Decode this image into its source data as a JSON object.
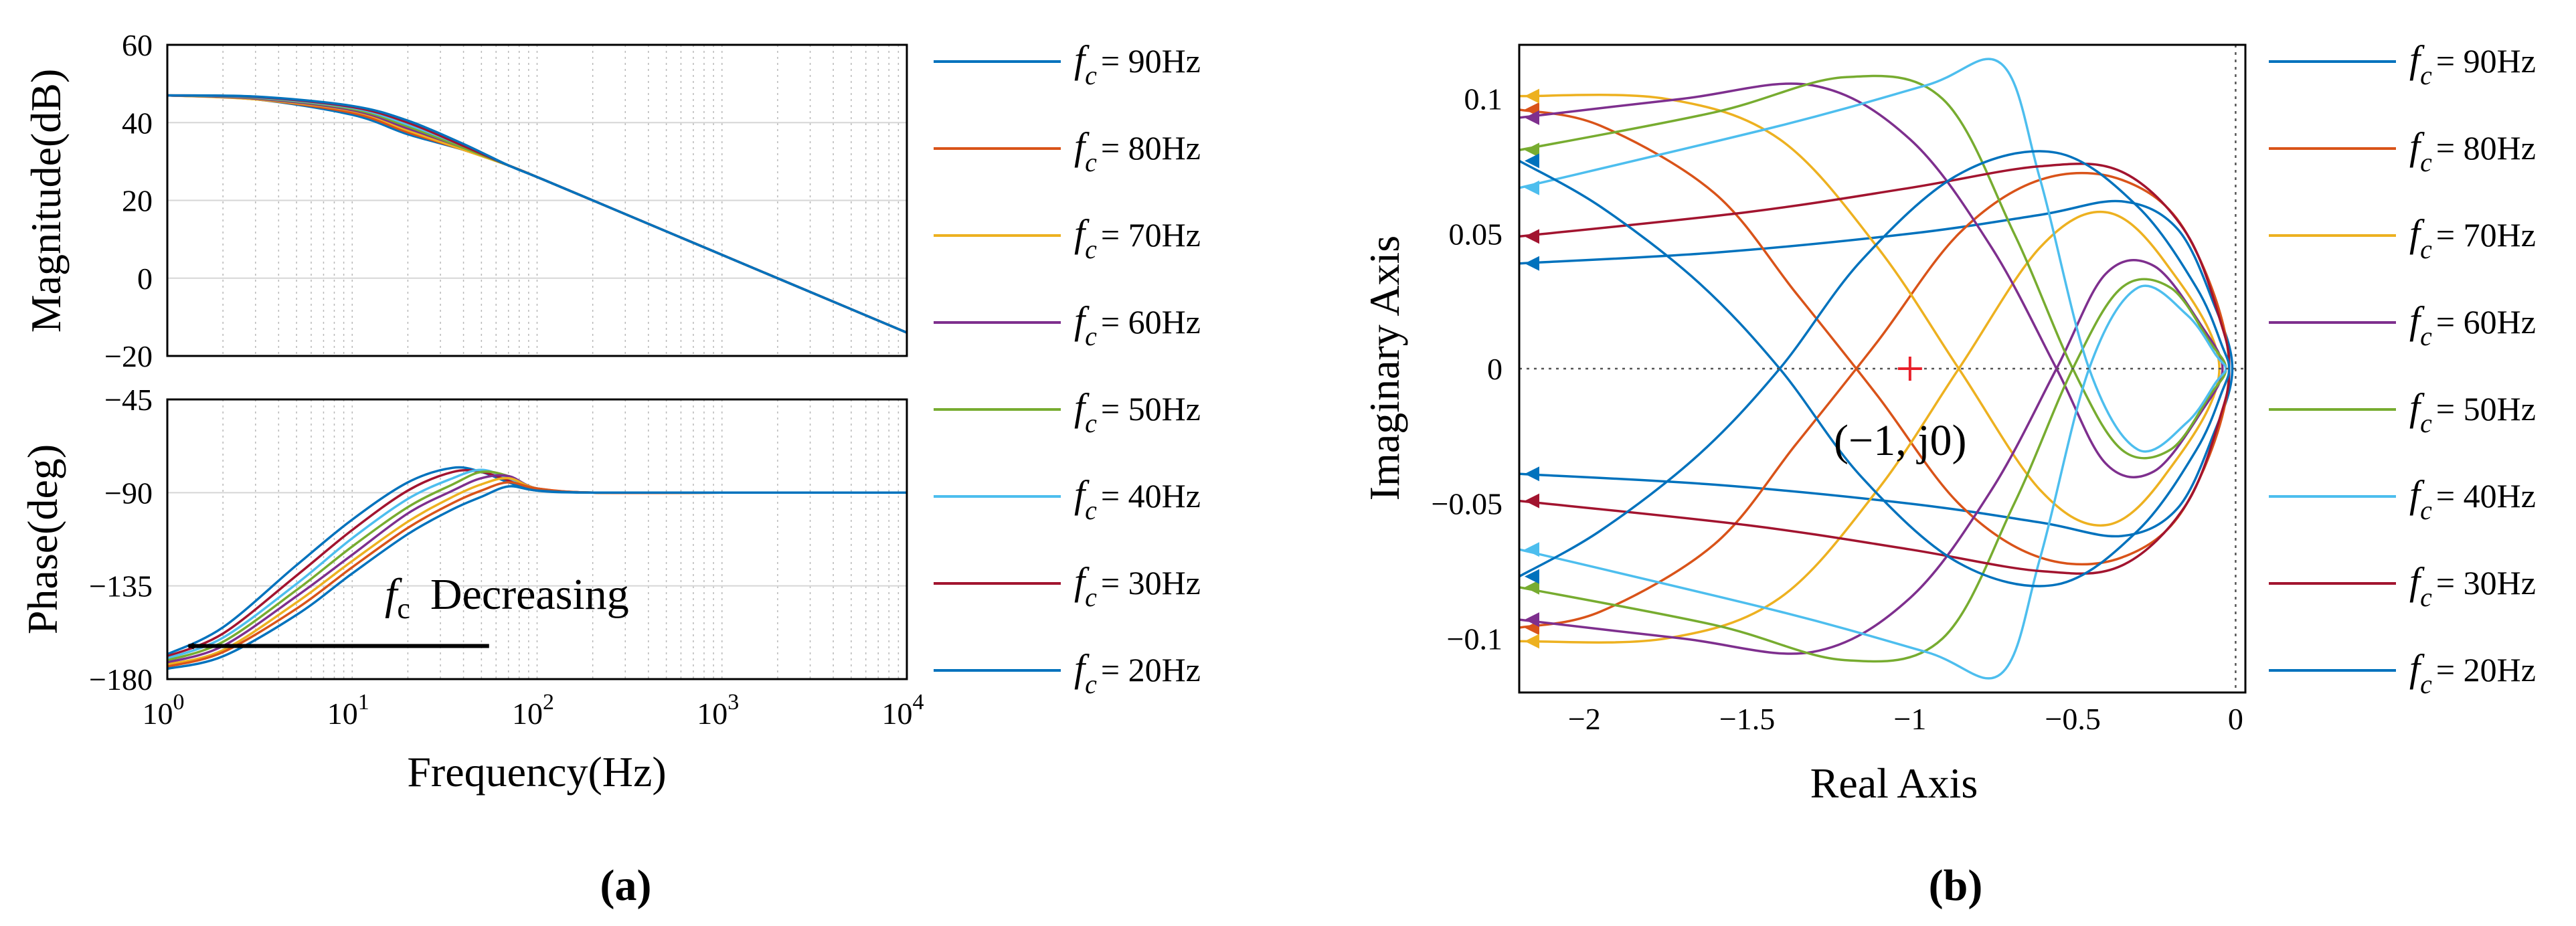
{
  "figure": {
    "caption_a": "(a)",
    "caption_b": "(b)"
  },
  "legend": {
    "prefix": "f",
    "subscript": "c",
    "entries": [
      {
        "label": "= 90Hz",
        "color": "#0072BD"
      },
      {
        "label": "= 80Hz",
        "color": "#D95319"
      },
      {
        "label": "= 70Hz",
        "color": "#EDB120"
      },
      {
        "label": "= 60Hz",
        "color": "#7E2F8E"
      },
      {
        "label": "= 50Hz",
        "color": "#77AC30"
      },
      {
        "label": "= 40Hz",
        "color": "#4DBEEE"
      },
      {
        "label": "= 30Hz",
        "color": "#A2142F"
      },
      {
        "label": "= 20Hz",
        "color": "#0072BD"
      }
    ]
  },
  "chart_data": [
    {
      "type": "line",
      "id": "bode-magnitude",
      "xscale": "log",
      "xlim": [
        1,
        10000
      ],
      "ylim": [
        -20,
        60
      ],
      "ylabel": "Magnitude(dB)",
      "yticks": [
        "60",
        "40",
        "20",
        "0",
        "−20"
      ],
      "ytick_values": [
        60,
        40,
        20,
        0,
        -20
      ],
      "x": [
        1,
        3,
        10,
        20,
        40,
        70,
        100,
        200,
        1000,
        10000
      ],
      "series": [
        {
          "name": "fc = 90Hz",
          "values": [
            47,
            46,
            42,
            37,
            33,
            29,
            26,
            20,
            6,
            -14
          ]
        },
        {
          "name": "fc = 80Hz",
          "values": [
            47,
            46,
            42.5,
            37.5,
            33,
            29,
            26,
            20,
            6,
            -14
          ]
        },
        {
          "name": "fc = 70Hz",
          "values": [
            47,
            46,
            43,
            38,
            33,
            29,
            26,
            20,
            6,
            -14
          ]
        },
        {
          "name": "fc = 60Hz",
          "values": [
            47,
            46.2,
            43.2,
            38.5,
            33.5,
            29,
            26,
            20,
            6,
            -14
          ]
        },
        {
          "name": "fc = 50Hz",
          "values": [
            47,
            46.4,
            43.5,
            39,
            33.5,
            29,
            26,
            20,
            6,
            -14
          ]
        },
        {
          "name": "fc = 40Hz",
          "values": [
            47,
            46.5,
            43.8,
            39.5,
            34,
            29,
            26,
            20,
            6,
            -14
          ]
        },
        {
          "name": "fc = 30Hz",
          "values": [
            47,
            46.6,
            44,
            40,
            34,
            29,
            26,
            20,
            6,
            -14
          ]
        },
        {
          "name": "fc = 20Hz",
          "values": [
            47,
            46.7,
            44.3,
            40.5,
            34.5,
            29,
            26,
            20,
            6,
            -14
          ]
        }
      ]
    },
    {
      "type": "line",
      "id": "bode-phase",
      "xscale": "log",
      "xlim": [
        1,
        10000
      ],
      "ylim": [
        -180,
        -45
      ],
      "xlabel": "Frequency(Hz)",
      "ylabel": "Phase(deg)",
      "yticks": [
        "−45",
        "−90",
        "−135",
        "−180"
      ],
      "ytick_values": [
        -45,
        -90,
        -135,
        -180
      ],
      "xticks": [
        {
          "base": "10",
          "exp": "0",
          "v": 1
        },
        {
          "base": "10",
          "exp": "1",
          "v": 10
        },
        {
          "base": "10",
          "exp": "2",
          "v": 100
        },
        {
          "base": "10",
          "exp": "3",
          "v": 1000
        },
        {
          "base": "10",
          "exp": "4",
          "v": 10000
        }
      ],
      "x": [
        1,
        2,
        5,
        10,
        20,
        35,
        50,
        70,
        100,
        200,
        1000,
        10000
      ],
      "series": [
        {
          "name": "fc = 20Hz",
          "values": [
            -168,
            -155,
            -125,
            -103,
            -85,
            -78,
            -80,
            -85,
            -89,
            -90,
            -90,
            -90
          ]
        },
        {
          "name": "fc = 30Hz",
          "values": [
            -169,
            -158,
            -130,
            -108,
            -89,
            -80,
            -80,
            -84,
            -88,
            -90,
            -90,
            -90
          ]
        },
        {
          "name": "fc = 40Hz",
          "values": [
            -170,
            -160,
            -134,
            -112,
            -93,
            -83,
            -79,
            -83,
            -88,
            -90,
            -90,
            -90
          ]
        },
        {
          "name": "fc = 50Hz",
          "values": [
            -171,
            -162,
            -137,
            -116,
            -97,
            -86,
            -80,
            -82,
            -88,
            -90,
            -90,
            -90
          ]
        },
        {
          "name": "fc = 60Hz",
          "values": [
            -172,
            -164,
            -140,
            -120,
            -100,
            -89,
            -83,
            -82,
            -88,
            -90,
            -90,
            -90
          ]
        },
        {
          "name": "fc = 70Hz",
          "values": [
            -173,
            -166,
            -143,
            -123,
            -104,
            -92,
            -86,
            -83,
            -88,
            -90,
            -90,
            -90
          ]
        },
        {
          "name": "fc = 80Hz",
          "values": [
            -174,
            -167,
            -146,
            -126,
            -107,
            -95,
            -89,
            -85,
            -88,
            -90,
            -90,
            -90
          ]
        },
        {
          "name": "fc = 90Hz",
          "values": [
            -175,
            -169,
            -149,
            -129,
            -110,
            -98,
            -92,
            -87,
            -89,
            -90,
            -90,
            -90
          ]
        }
      ],
      "annotation": {
        "symbol": "f",
        "sub": "c",
        "text": "Decreasing",
        "arrow_from_hz": 55,
        "arrow_to_hz": 1.3,
        "arrow_deg": -164
      }
    },
    {
      "type": "line",
      "id": "nyquist",
      "xlim": [
        -2.2,
        0.03
      ],
      "ylim": [
        -0.12,
        0.12
      ],
      "xlabel": "Real Axis",
      "ylabel": "Imaginary Axis",
      "xticks": [
        {
          "label": "−2",
          "v": -2
        },
        {
          "label": "−1.5",
          "v": -1.5
        },
        {
          "label": "−1",
          "v": -1
        },
        {
          "label": "−0.5",
          "v": -0.5
        },
        {
          "label": "0",
          "v": 0
        }
      ],
      "yticks": [
        {
          "label": "0.1",
          "v": 0.1
        },
        {
          "label": "0.05",
          "v": 0.05
        },
        {
          "label": "0",
          "v": 0
        },
        {
          "label": "−0.05",
          "v": -0.05
        },
        {
          "label": "−0.1",
          "v": -0.1
        }
      ],
      "critical_point": {
        "x": -1,
        "y": 0,
        "label": "(−1, j0)"
      },
      "series": [
        {
          "name": "fc = 90Hz",
          "points": [
            [
              -2.2,
              0.039
            ],
            [
              -1.6,
              0.043
            ],
            [
              -1.0,
              0.05
            ],
            [
              -0.6,
              0.057
            ],
            [
              -0.35,
              0.062
            ],
            [
              -0.18,
              0.052
            ],
            [
              -0.07,
              0.025
            ],
            [
              -0.01,
              0.0
            ],
            [
              -0.07,
              -0.025
            ],
            [
              -0.18,
              -0.052
            ],
            [
              -0.35,
              -0.062
            ],
            [
              -0.6,
              -0.057
            ],
            [
              -1.0,
              -0.05
            ],
            [
              -1.6,
              -0.043
            ],
            [
              -2.2,
              -0.039
            ]
          ]
        },
        {
          "name": "fc = 80Hz",
          "points": [
            [
              -2.2,
              0.096
            ],
            [
              -1.95,
              0.09
            ],
            [
              -1.6,
              0.065
            ],
            [
              -1.35,
              0.028
            ],
            [
              -1.1,
              -0.01
            ],
            [
              -0.85,
              -0.05
            ],
            [
              -0.6,
              -0.07
            ],
            [
              -0.35,
              -0.07
            ],
            [
              -0.15,
              -0.05
            ],
            [
              -0.02,
              0.0
            ],
            [
              -0.15,
              0.05
            ],
            [
              -0.35,
              0.07
            ],
            [
              -0.6,
              0.07
            ],
            [
              -0.85,
              0.05
            ],
            [
              -1.1,
              0.01
            ],
            [
              -1.35,
              -0.028
            ],
            [
              -1.6,
              -0.065
            ],
            [
              -1.95,
              -0.09
            ],
            [
              -2.2,
              -0.096
            ]
          ]
        },
        {
          "name": "fc = 70Hz",
          "points": [
            [
              -2.2,
              0.101
            ],
            [
              -1.75,
              0.1
            ],
            [
              -1.4,
              0.085
            ],
            [
              -1.1,
              0.045
            ],
            [
              -0.85,
              0.0
            ],
            [
              -0.6,
              -0.045
            ],
            [
              -0.4,
              -0.058
            ],
            [
              -0.22,
              -0.04
            ],
            [
              -0.05,
              0.0
            ],
            [
              -0.22,
              0.04
            ],
            [
              -0.4,
              0.058
            ],
            [
              -0.6,
              0.045
            ],
            [
              -0.85,
              0.0
            ],
            [
              -1.1,
              -0.045
            ],
            [
              -1.4,
              -0.085
            ],
            [
              -1.75,
              -0.1
            ],
            [
              -2.2,
              -0.101
            ]
          ]
        },
        {
          "name": "fc = 60Hz",
          "points": [
            [
              -2.2,
              0.093
            ],
            [
              -1.7,
              0.1
            ],
            [
              -1.3,
              0.105
            ],
            [
              -1.0,
              0.085
            ],
            [
              -0.75,
              0.045
            ],
            [
              -0.55,
              0.0
            ],
            [
              -0.4,
              -0.035
            ],
            [
              -0.25,
              -0.038
            ],
            [
              -0.1,
              -0.015
            ],
            [
              -0.04,
              0.0
            ],
            [
              -0.1,
              0.015
            ],
            [
              -0.25,
              0.038
            ],
            [
              -0.4,
              0.035
            ],
            [
              -0.55,
              0.0
            ],
            [
              -0.75,
              -0.045
            ],
            [
              -1.0,
              -0.085
            ],
            [
              -1.3,
              -0.105
            ],
            [
              -1.7,
              -0.1
            ],
            [
              -2.2,
              -0.093
            ]
          ]
        },
        {
          "name": "fc = 50Hz",
          "points": [
            [
              -2.2,
              0.081
            ],
            [
              -1.6,
              0.095
            ],
            [
              -1.2,
              0.108
            ],
            [
              -0.9,
              0.1
            ],
            [
              -0.68,
              0.05
            ],
            [
              -0.5,
              0.0
            ],
            [
              -0.35,
              -0.03
            ],
            [
              -0.2,
              -0.03
            ],
            [
              -0.08,
              -0.01
            ],
            [
              -0.03,
              0.0
            ],
            [
              -0.08,
              0.01
            ],
            [
              -0.2,
              0.03
            ],
            [
              -0.35,
              0.03
            ],
            [
              -0.5,
              0.0
            ],
            [
              -0.68,
              -0.05
            ],
            [
              -0.9,
              -0.1
            ],
            [
              -1.2,
              -0.108
            ],
            [
              -1.6,
              -0.095
            ],
            [
              -2.2,
              -0.081
            ]
          ]
        },
        {
          "name": "fc = 40Hz",
          "points": [
            [
              -2.2,
              0.067
            ],
            [
              -1.4,
              0.09
            ],
            [
              -0.95,
              0.105
            ],
            [
              -0.72,
              0.113
            ],
            [
              -0.6,
              0.07
            ],
            [
              -0.45,
              0.0
            ],
            [
              -0.3,
              -0.03
            ],
            [
              -0.15,
              -0.02
            ],
            [
              -0.06,
              -0.005
            ],
            [
              -0.03,
              0.0
            ],
            [
              -0.06,
              0.005
            ],
            [
              -0.15,
              0.02
            ],
            [
              -0.3,
              0.03
            ],
            [
              -0.45,
              0.0
            ],
            [
              -0.6,
              -0.07
            ],
            [
              -0.72,
              -0.113
            ],
            [
              -0.95,
              -0.105
            ],
            [
              -1.4,
              -0.09
            ],
            [
              -2.2,
              -0.067
            ]
          ]
        },
        {
          "name": "fc = 30Hz",
          "points": [
            [
              -2.2,
              0.049
            ],
            [
              -1.5,
              0.058
            ],
            [
              -1.0,
              0.067
            ],
            [
              -0.6,
              0.075
            ],
            [
              -0.35,
              0.073
            ],
            [
              -0.15,
              0.05
            ],
            [
              -0.04,
              0.015
            ],
            [
              -0.02,
              0.0
            ],
            [
              -0.04,
              -0.015
            ],
            [
              -0.15,
              -0.05
            ],
            [
              -0.35,
              -0.073
            ],
            [
              -0.6,
              -0.075
            ],
            [
              -1.0,
              -0.067
            ],
            [
              -1.5,
              -0.058
            ],
            [
              -2.2,
              -0.049
            ]
          ]
        },
        {
          "name": "fc = 20Hz",
          "points": [
            [
              -2.2,
              0.077
            ],
            [
              -1.95,
              0.06
            ],
            [
              -1.65,
              0.032
            ],
            [
              -1.4,
              0.0
            ],
            [
              -1.15,
              -0.04
            ],
            [
              -0.85,
              -0.072
            ],
            [
              -0.55,
              -0.08
            ],
            [
              -0.3,
              -0.06
            ],
            [
              -0.12,
              -0.03
            ],
            [
              -0.04,
              -0.008
            ],
            [
              -0.02,
              0.0
            ],
            [
              -0.04,
              0.008
            ],
            [
              -0.12,
              0.03
            ],
            [
              -0.3,
              0.06
            ],
            [
              -0.55,
              0.08
            ],
            [
              -0.85,
              0.072
            ],
            [
              -1.15,
              0.04
            ],
            [
              -1.4,
              0.0
            ],
            [
              -1.65,
              -0.032
            ],
            [
              -1.95,
              -0.06
            ],
            [
              -2.2,
              -0.077
            ]
          ]
        }
      ]
    }
  ]
}
